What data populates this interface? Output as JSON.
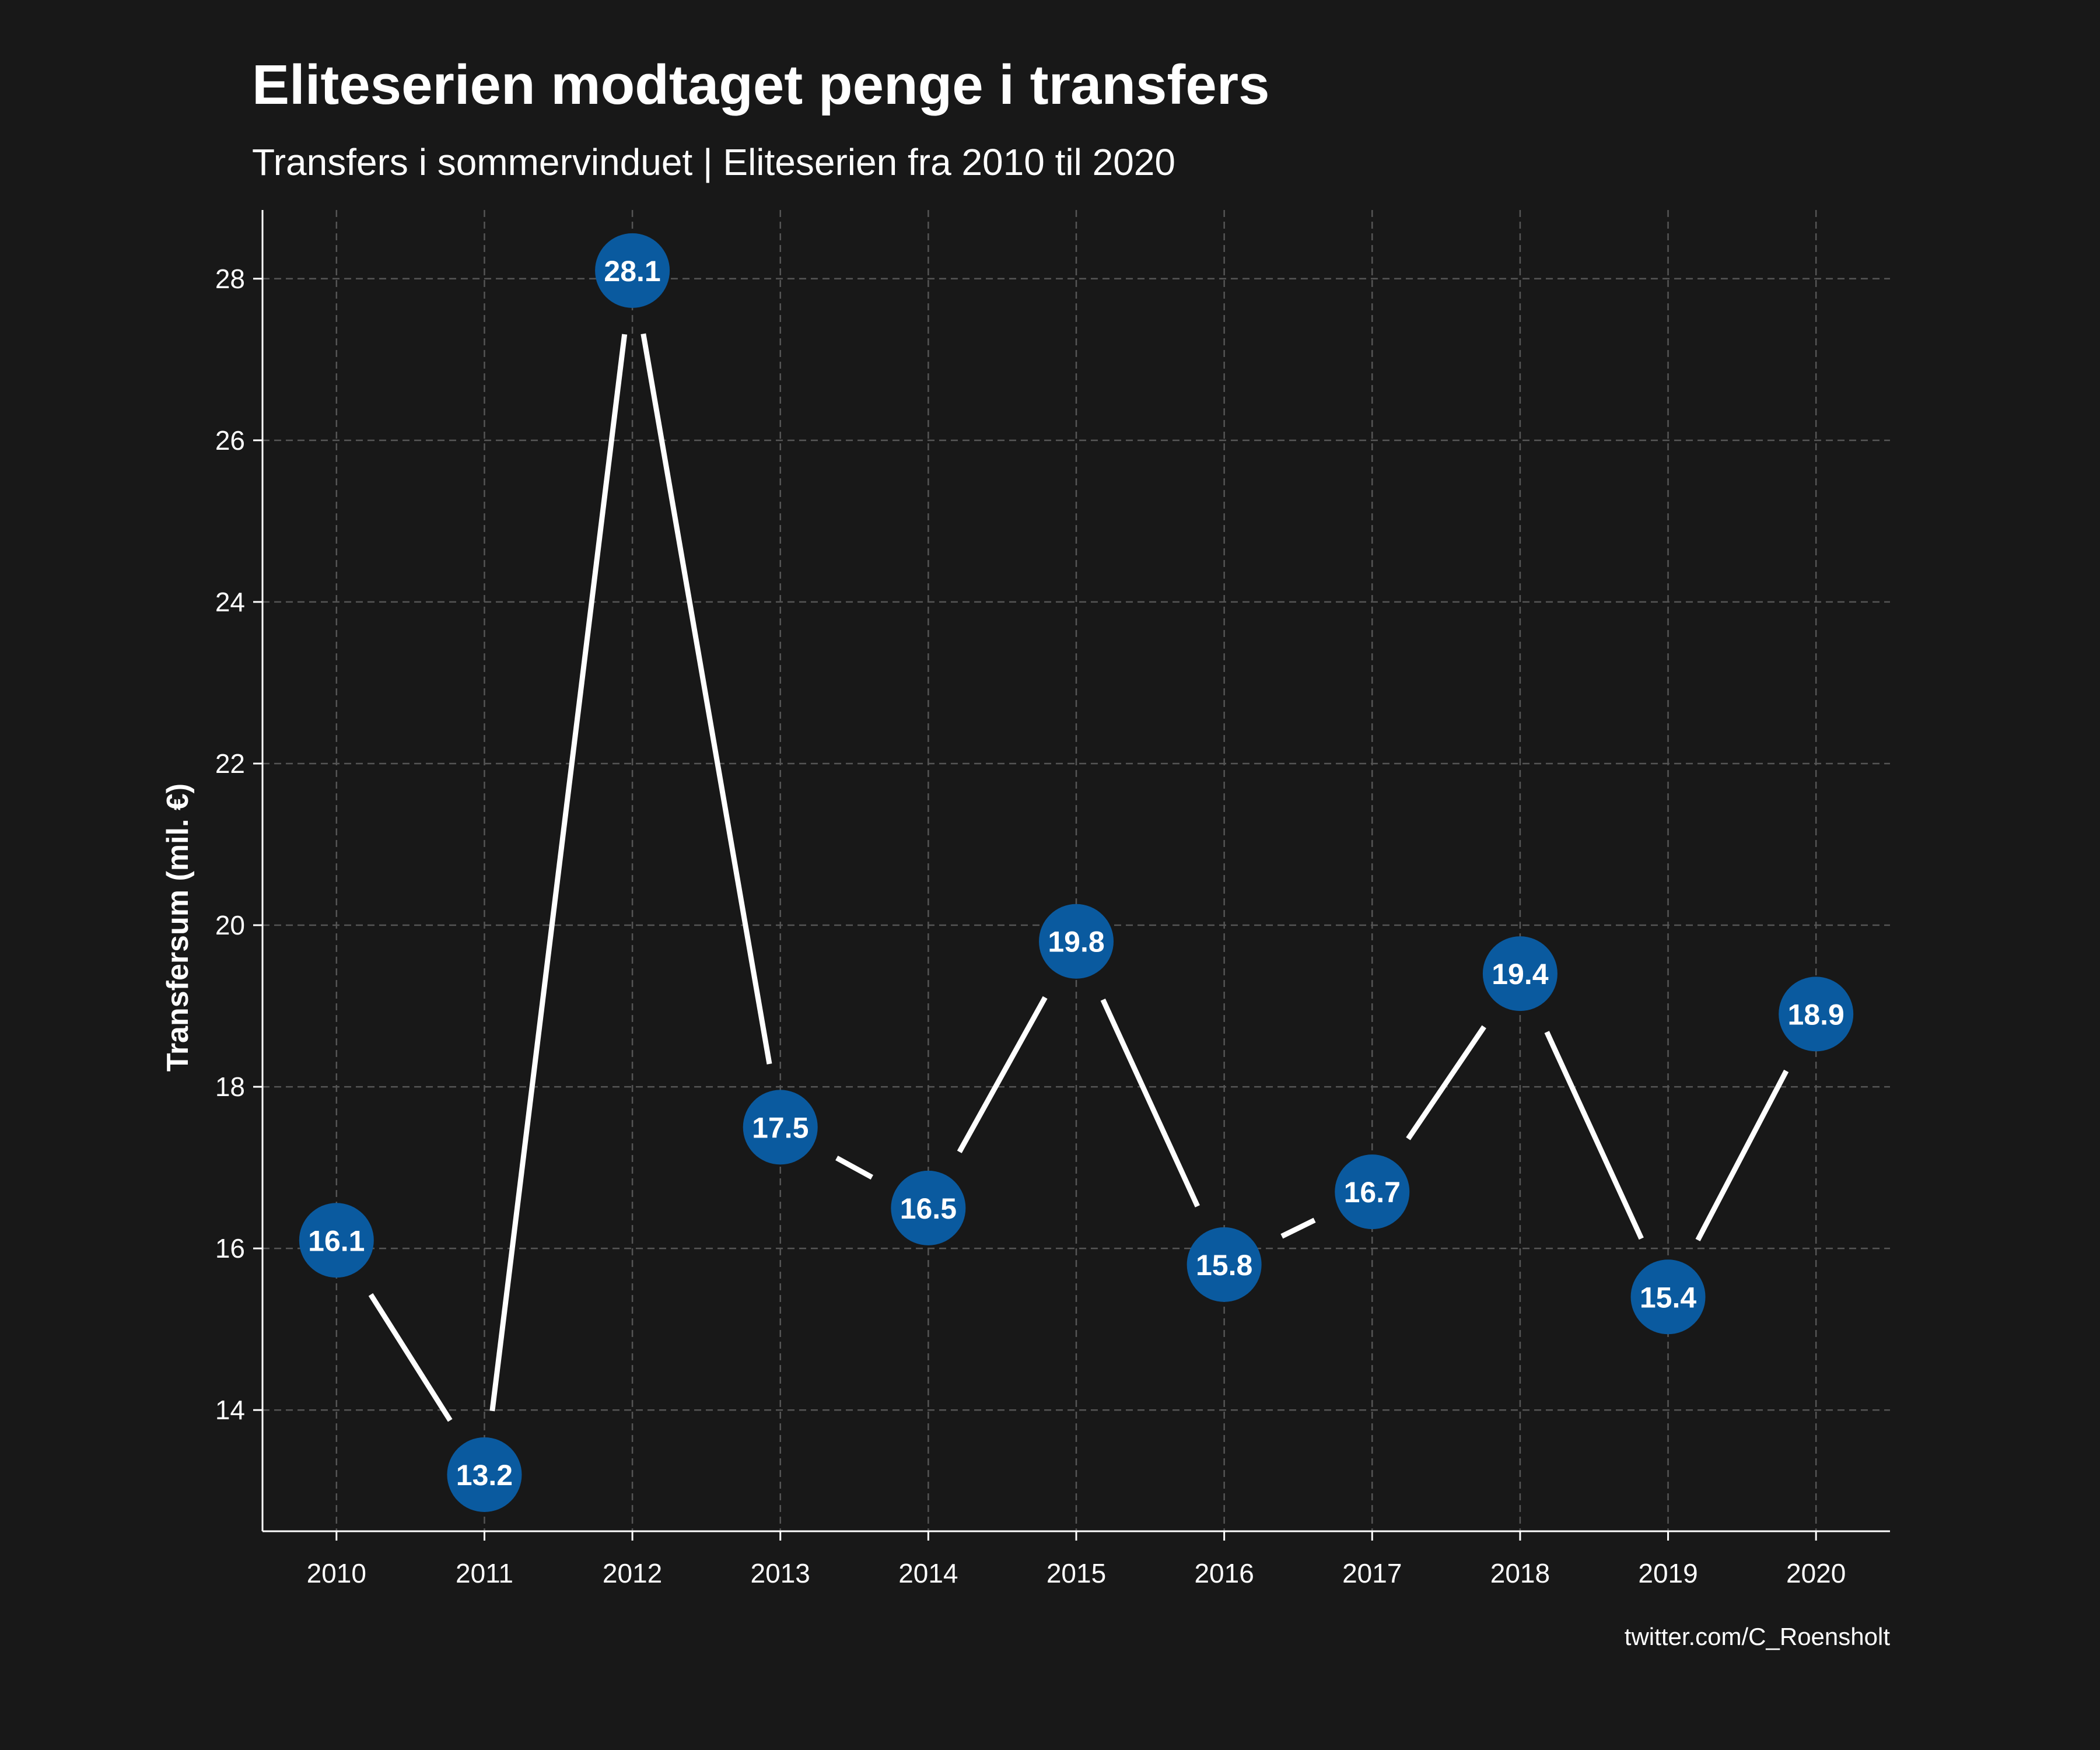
{
  "chart_data": {
    "type": "line",
    "title": "Eliteserien modtaget penge i transfers",
    "subtitle": "Transfers i sommervinduet | Eliteserien fra 2010 til 2020",
    "xlabel": "",
    "ylabel": "Transfersum (mil. €)",
    "caption": "twitter.com/C_Roensholt",
    "x": [
      2010,
      2011,
      2012,
      2013,
      2014,
      2015,
      2016,
      2017,
      2018,
      2019,
      2020
    ],
    "x_tick_labels": [
      "2010",
      "2011",
      "2012",
      "2013",
      "2014",
      "2015",
      "2016",
      "2017",
      "2018",
      "2019",
      "2020"
    ],
    "values": [
      16.1,
      13.2,
      28.1,
      17.5,
      16.5,
      19.8,
      15.8,
      16.7,
      19.4,
      15.4,
      18.9
    ],
    "value_labels": [
      "16.1",
      "13.2",
      "28.1",
      "17.5",
      "16.5",
      "19.8",
      "15.8",
      "16.7",
      "19.4",
      "15.4",
      "18.9"
    ],
    "y_ticks": [
      14,
      16,
      18,
      20,
      22,
      24,
      26,
      28
    ],
    "y_tick_labels": [
      "14",
      "16",
      "18",
      "20",
      "22",
      "24",
      "26",
      "28"
    ],
    "xlim": [
      2009.5,
      2020.5
    ],
    "ylim": [
      12.5,
      28.85
    ],
    "grid": true,
    "legend": "none",
    "colors": {
      "background": "#181818",
      "line": "#ffffff",
      "marker": "#0a5a9f",
      "grid": "#555555",
      "text": "#ffffff"
    }
  }
}
